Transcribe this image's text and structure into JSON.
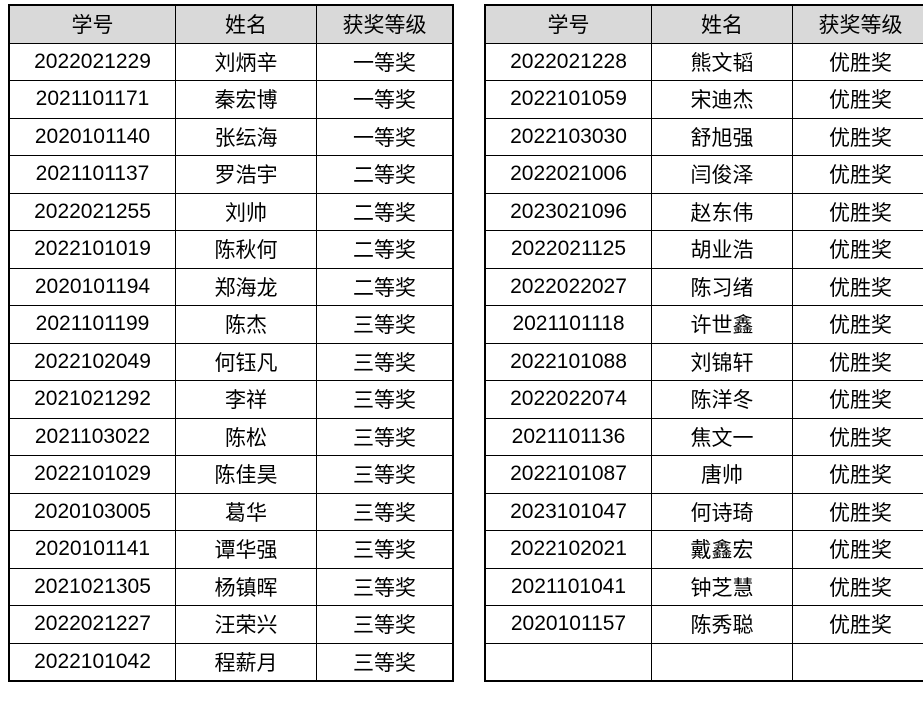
{
  "colors": {
    "header_bg": "#d9d9d9",
    "border": "#000000",
    "text": "#000000",
    "page_bg": "#ffffff"
  },
  "tables": [
    {
      "name": "award-table-left",
      "headers": [
        "学号",
        "姓名",
        "获奖等级"
      ],
      "rows": [
        [
          "2022021229",
          "刘炳辛",
          "一等奖"
        ],
        [
          "2021101171",
          "秦宏博",
          "一等奖"
        ],
        [
          "2020101140",
          "张纭海",
          "一等奖"
        ],
        [
          "2021101137",
          "罗浩宇",
          "二等奖"
        ],
        [
          "2022021255",
          "刘帅",
          "二等奖"
        ],
        [
          "2022101019",
          "陈秋何",
          "二等奖"
        ],
        [
          "2020101194",
          "郑海龙",
          "二等奖"
        ],
        [
          "2021101199",
          "陈杰",
          "三等奖"
        ],
        [
          "2022102049",
          "何钰凡",
          "三等奖"
        ],
        [
          "2021021292",
          "李祥",
          "三等奖"
        ],
        [
          "2021103022",
          "陈松",
          "三等奖"
        ],
        [
          "2022101029",
          "陈佳昊",
          "三等奖"
        ],
        [
          "2020103005",
          "葛华",
          "三等奖"
        ],
        [
          "2020101141",
          "谭华强",
          "三等奖"
        ],
        [
          "2021021305",
          "杨镇晖",
          "三等奖"
        ],
        [
          "2022021227",
          "汪荣兴",
          "三等奖"
        ],
        [
          "2022101042",
          "程薪月",
          "三等奖"
        ]
      ]
    },
    {
      "name": "award-table-right",
      "headers": [
        "学号",
        "姓名",
        "获奖等级"
      ],
      "rows": [
        [
          "2022021228",
          "熊文韬",
          "优胜奖"
        ],
        [
          "2022101059",
          "宋迪杰",
          "优胜奖"
        ],
        [
          "2022103030",
          "舒旭强",
          "优胜奖"
        ],
        [
          "2022021006",
          "闫俊泽",
          "优胜奖"
        ],
        [
          "2023021096",
          "赵东伟",
          "优胜奖"
        ],
        [
          "2022021125",
          "胡业浩",
          "优胜奖"
        ],
        [
          "2022022027",
          "陈习绪",
          "优胜奖"
        ],
        [
          "2021101118",
          "许世鑫",
          "优胜奖"
        ],
        [
          "2022101088",
          "刘锦轩",
          "优胜奖"
        ],
        [
          "2022022074",
          "陈洋冬",
          "优胜奖"
        ],
        [
          "2021101136",
          "焦文一",
          "优胜奖"
        ],
        [
          "2022101087",
          "唐帅",
          "优胜奖"
        ],
        [
          "2023101047",
          "何诗琦",
          "优胜奖"
        ],
        [
          "2022102021",
          "戴鑫宏",
          "优胜奖"
        ],
        [
          "2021101041",
          "钟芝慧",
          "优胜奖"
        ],
        [
          "2020101157",
          "陈秀聪",
          "优胜奖"
        ],
        [
          "",
          "",
          ""
        ]
      ]
    }
  ]
}
